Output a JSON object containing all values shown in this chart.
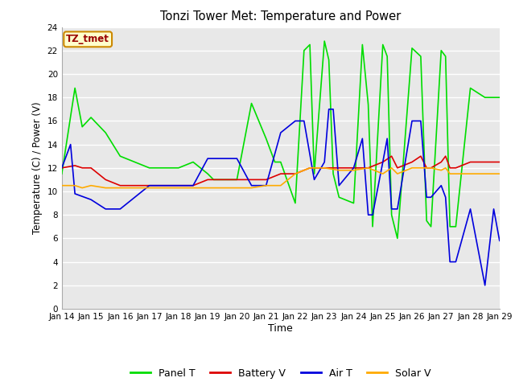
{
  "title": "Tonzi Tower Met: Temperature and Power",
  "xlabel": "Time",
  "ylabel": "Temperature (C) / Power (V)",
  "xlim": [
    0,
    15
  ],
  "ylim": [
    0,
    24
  ],
  "yticks": [
    0,
    2,
    4,
    6,
    8,
    10,
    12,
    14,
    16,
    18,
    20,
    22,
    24
  ],
  "xtick_labels": [
    "Jan 14",
    "Jan 15",
    "Jan 16",
    "Jan 17",
    "Jan 18",
    "Jan 19",
    "Jan 20",
    "Jan 21",
    "Jan 22",
    "Jan 23",
    "Jan 24",
    "Jan 25",
    "Jan 26",
    "Jan 27",
    "Jan 28",
    "Jan 29"
  ],
  "bg_color": "#e8e8e8",
  "fig_bg_color": "#ffffff",
  "grid_color": "#ffffff",
  "annotation_text": "TZ_tmet",
  "annotation_bg": "#ffffcc",
  "annotation_border": "#cc8800",
  "series": {
    "panel_t": {
      "color": "#00dd00",
      "label": "Panel T",
      "x": [
        0.0,
        0.45,
        0.7,
        1.0,
        1.5,
        2.0,
        2.5,
        3.0,
        3.5,
        4.0,
        4.5,
        5.0,
        5.2,
        5.4,
        5.6,
        5.7,
        5.8,
        6.0,
        6.5,
        7.0,
        7.3,
        7.5,
        8.0,
        8.3,
        8.5,
        8.65,
        9.0,
        9.15,
        9.3,
        9.5,
        10.0,
        10.3,
        10.5,
        10.65,
        11.0,
        11.15,
        11.3,
        11.5,
        12.0,
        12.3,
        12.5,
        12.65,
        13.0,
        13.15,
        13.3,
        13.5,
        14.0,
        14.5,
        14.8,
        15.0
      ],
      "y": [
        11.5,
        18.8,
        15.5,
        16.3,
        15.0,
        13.0,
        12.5,
        12.0,
        12.0,
        12.0,
        12.5,
        11.5,
        11.0,
        11.0,
        11.0,
        11.0,
        11.0,
        11.0,
        17.5,
        14.5,
        12.5,
        12.5,
        9.0,
        22.0,
        22.5,
        11.5,
        22.8,
        21.2,
        11.5,
        9.5,
        9.0,
        22.5,
        17.4,
        7.0,
        22.5,
        21.5,
        8.0,
        6.0,
        22.2,
        21.5,
        7.5,
        7.0,
        22.0,
        21.5,
        7.0,
        7.0,
        18.8,
        18.0,
        18.0,
        18.0
      ]
    },
    "battery_v": {
      "color": "#dd0000",
      "label": "Battery V",
      "x": [
        0.0,
        0.45,
        0.7,
        1.0,
        1.5,
        2.0,
        2.5,
        3.0,
        3.5,
        4.0,
        4.5,
        5.0,
        5.5,
        6.0,
        6.5,
        7.0,
        7.5,
        8.0,
        8.5,
        9.0,
        9.5,
        10.0,
        10.5,
        11.0,
        11.3,
        11.5,
        12.0,
        12.3,
        12.5,
        12.65,
        13.0,
        13.15,
        13.3,
        13.5,
        14.0,
        14.5,
        15.0
      ],
      "y": [
        12.0,
        12.2,
        12.0,
        12.0,
        11.0,
        10.5,
        10.5,
        10.5,
        10.5,
        10.5,
        10.5,
        11.0,
        11.0,
        11.0,
        11.0,
        11.0,
        11.5,
        11.5,
        12.0,
        12.0,
        12.0,
        12.0,
        12.0,
        12.5,
        13.0,
        12.0,
        12.5,
        13.0,
        12.0,
        12.0,
        12.5,
        13.0,
        12.0,
        12.0,
        12.5,
        12.5,
        12.5
      ]
    },
    "air_t": {
      "color": "#0000dd",
      "label": "Air T",
      "x": [
        0.0,
        0.3,
        0.45,
        1.0,
        1.5,
        2.0,
        2.5,
        3.0,
        3.5,
        4.0,
        4.5,
        5.0,
        5.5,
        6.0,
        6.5,
        7.0,
        7.5,
        8.0,
        8.3,
        8.65,
        9.0,
        9.15,
        9.3,
        9.5,
        10.0,
        10.3,
        10.5,
        10.65,
        11.0,
        11.15,
        11.3,
        11.5,
        12.0,
        12.3,
        12.5,
        12.65,
        13.0,
        13.15,
        13.3,
        13.5,
        14.0,
        14.5,
        14.8,
        15.0
      ],
      "y": [
        12.0,
        14.0,
        9.8,
        9.3,
        8.5,
        8.5,
        9.5,
        10.5,
        10.5,
        10.5,
        10.5,
        12.8,
        12.8,
        12.8,
        10.5,
        10.5,
        15.0,
        16.0,
        16.0,
        11.0,
        12.5,
        17.0,
        17.0,
        10.5,
        12.0,
        14.5,
        8.0,
        8.0,
        12.5,
        14.5,
        8.5,
        8.5,
        16.0,
        16.0,
        9.5,
        9.5,
        10.5,
        9.5,
        4.0,
        4.0,
        8.5,
        2.0,
        8.5,
        5.8
      ]
    },
    "solar_v": {
      "color": "#ffaa00",
      "label": "Solar V",
      "x": [
        0.0,
        0.45,
        0.7,
        1.0,
        1.5,
        2.0,
        2.5,
        3.0,
        3.5,
        4.0,
        4.5,
        5.0,
        5.5,
        6.0,
        6.5,
        7.0,
        7.5,
        8.0,
        8.5,
        9.0,
        9.5,
        10.0,
        10.5,
        11.0,
        11.3,
        11.5,
        12.0,
        12.3,
        12.5,
        12.65,
        13.0,
        13.15,
        13.3,
        13.5,
        14.0,
        14.5,
        15.0
      ],
      "y": [
        10.5,
        10.5,
        10.3,
        10.5,
        10.3,
        10.3,
        10.3,
        10.3,
        10.3,
        10.3,
        10.3,
        10.3,
        10.3,
        10.3,
        10.3,
        10.5,
        10.5,
        11.5,
        12.0,
        12.0,
        11.8,
        11.8,
        12.0,
        11.5,
        12.0,
        11.5,
        12.0,
        12.0,
        12.0,
        12.0,
        11.8,
        12.0,
        11.5,
        11.5,
        11.5,
        11.5,
        11.5
      ]
    }
  }
}
